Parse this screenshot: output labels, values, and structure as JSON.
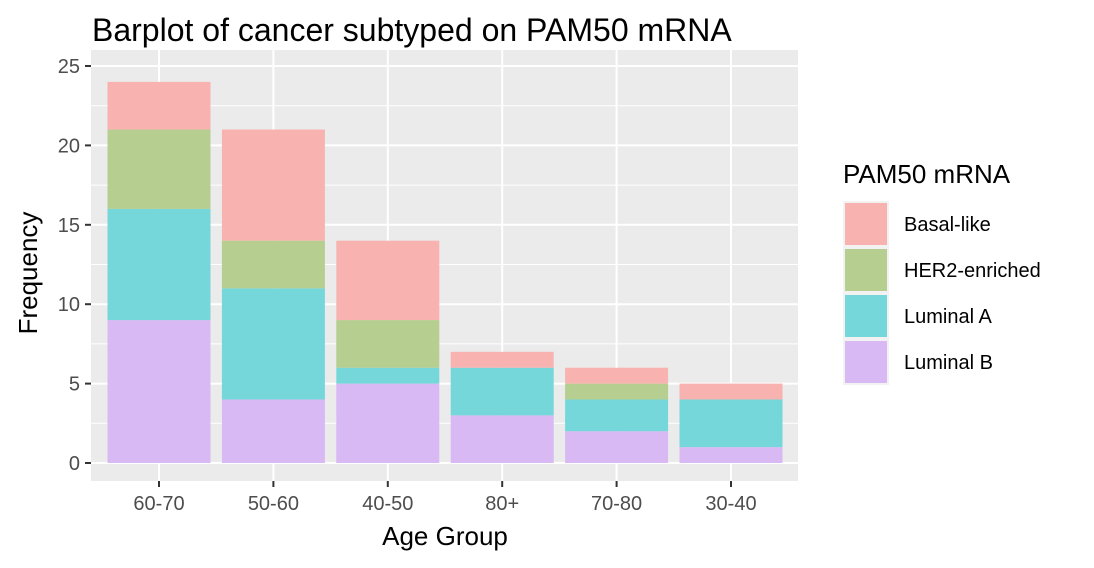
{
  "chart_data": {
    "type": "bar",
    "stacked": true,
    "title": "Barplot of cancer subtyped on PAM50 mRNA",
    "xlabel": "Age Group",
    "ylabel": "Frequency",
    "ylim": [
      0,
      25
    ],
    "yticks": [
      "0",
      "5",
      "10",
      "15",
      "20",
      "25"
    ],
    "grid": true,
    "legend_position": "right",
    "legend_title": "PAM50 mRNA",
    "categories": [
      "60-70",
      "50-60",
      "40-50",
      "80+",
      "70-80",
      "30-40"
    ],
    "series": [
      {
        "name": "Basal-like",
        "color": "#F8B3B0",
        "values": [
          3,
          7,
          5,
          1,
          1,
          1
        ]
      },
      {
        "name": "HER2-enriched",
        "color": "#B6CE8F",
        "values": [
          5,
          3,
          3,
          0,
          1,
          0
        ]
      },
      {
        "name": "Luminal A",
        "color": "#75D7DA",
        "values": [
          7,
          7,
          1,
          3,
          2,
          3
        ]
      },
      {
        "name": "Luminal B",
        "color": "#D8B9F4",
        "values": [
          9,
          4,
          5,
          3,
          2,
          1
        ]
      }
    ]
  },
  "colors": {
    "panel_background": "#EBEBEB",
    "grid_major": "#FFFFFF",
    "tick_text": "#4D4D4D"
  }
}
